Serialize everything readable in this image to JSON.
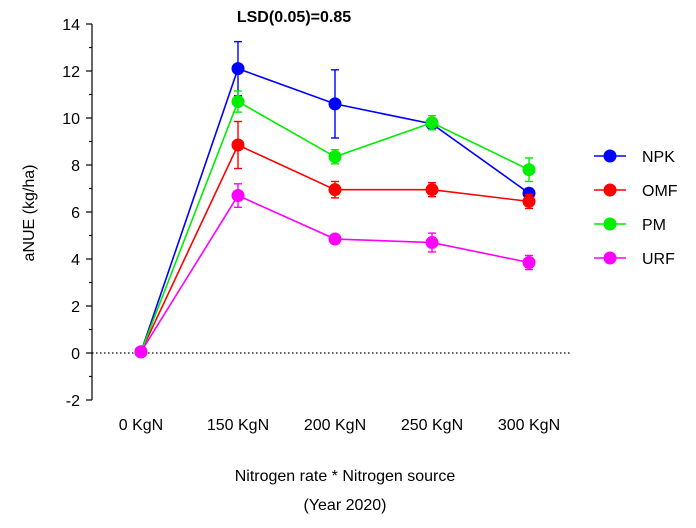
{
  "chart_data": {
    "type": "line",
    "title": "LSD(0.05)=0.85",
    "xlabel": "Nitrogen rate * Nitrogen source",
    "xlabel_sub": "(Year 2020)",
    "ylabel": "aNUE (kg/ha)",
    "ylim": [
      -2,
      14
    ],
    "yticks": [
      -2,
      0,
      2,
      4,
      6,
      8,
      10,
      12,
      14
    ],
    "categories": [
      "0 KgN",
      "150 KgN",
      "200 KgN",
      "250 KgN",
      "300 KgN"
    ],
    "zero_line": "dotted",
    "grid": false,
    "legend_position": "right",
    "series": [
      {
        "name": "NPK",
        "color": "#0000ff",
        "values": [
          0.05,
          12.1,
          10.6,
          9.75,
          6.8
        ],
        "errors": [
          0,
          1.15,
          1.45,
          0.1,
          0.2
        ]
      },
      {
        "name": "OMF",
        "color": "#ff0000",
        "values": [
          0.05,
          8.85,
          6.95,
          6.95,
          6.45
        ],
        "errors": [
          0,
          1.0,
          0.35,
          0.3,
          0.3
        ]
      },
      {
        "name": "PM",
        "color": "#00ee00",
        "values": [
          0.05,
          10.7,
          8.35,
          9.8,
          7.8
        ],
        "errors": [
          0,
          0.45,
          0.3,
          0.3,
          0.5
        ]
      },
      {
        "name": "URF",
        "color": "#ff00ff",
        "values": [
          0.05,
          6.7,
          4.85,
          4.7,
          3.85
        ],
        "errors": [
          0,
          0.5,
          0.2,
          0.4,
          0.3
        ]
      }
    ]
  }
}
